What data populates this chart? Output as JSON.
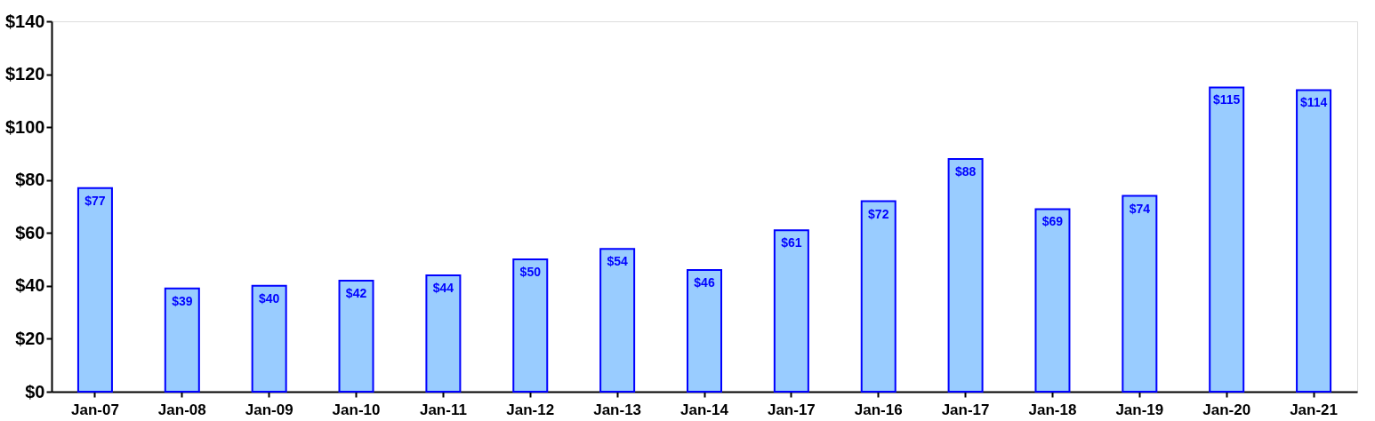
{
  "chart_data": {
    "type": "bar",
    "categories": [
      "Jan-07",
      "Jan-08",
      "Jan-09",
      "Jan-10",
      "Jan-11",
      "Jan-12",
      "Jan-13",
      "Jan-14",
      "Jan-17",
      "Jan-16",
      "Jan-17",
      "Jan-18",
      "Jan-19",
      "Jan-20",
      "Jan-21"
    ],
    "values": [
      77,
      39,
      40,
      42,
      44,
      50,
      54,
      46,
      61,
      72,
      88,
      69,
      74,
      115,
      114
    ],
    "value_labels": [
      "$77",
      "$39",
      "$40",
      "$42",
      "$44",
      "$50",
      "$54",
      "$46",
      "$61",
      "$72",
      "$88",
      "$69",
      "$74",
      "$115",
      "$114"
    ],
    "color": "#99ccff",
    "ylim": [
      0,
      140
    ],
    "yticks": [
      {
        "value": 0,
        "label": "$0"
      },
      {
        "value": 20,
        "label": "$20"
      },
      {
        "value": 40,
        "label": "$40"
      },
      {
        "value": 60,
        "label": "$60"
      },
      {
        "value": 80,
        "label": "$80"
      },
      {
        "value": 100,
        "label": "$100"
      },
      {
        "value": 120,
        "label": "$120"
      },
      {
        "value": 140,
        "label": "$140"
      }
    ],
    "grid": false
  }
}
